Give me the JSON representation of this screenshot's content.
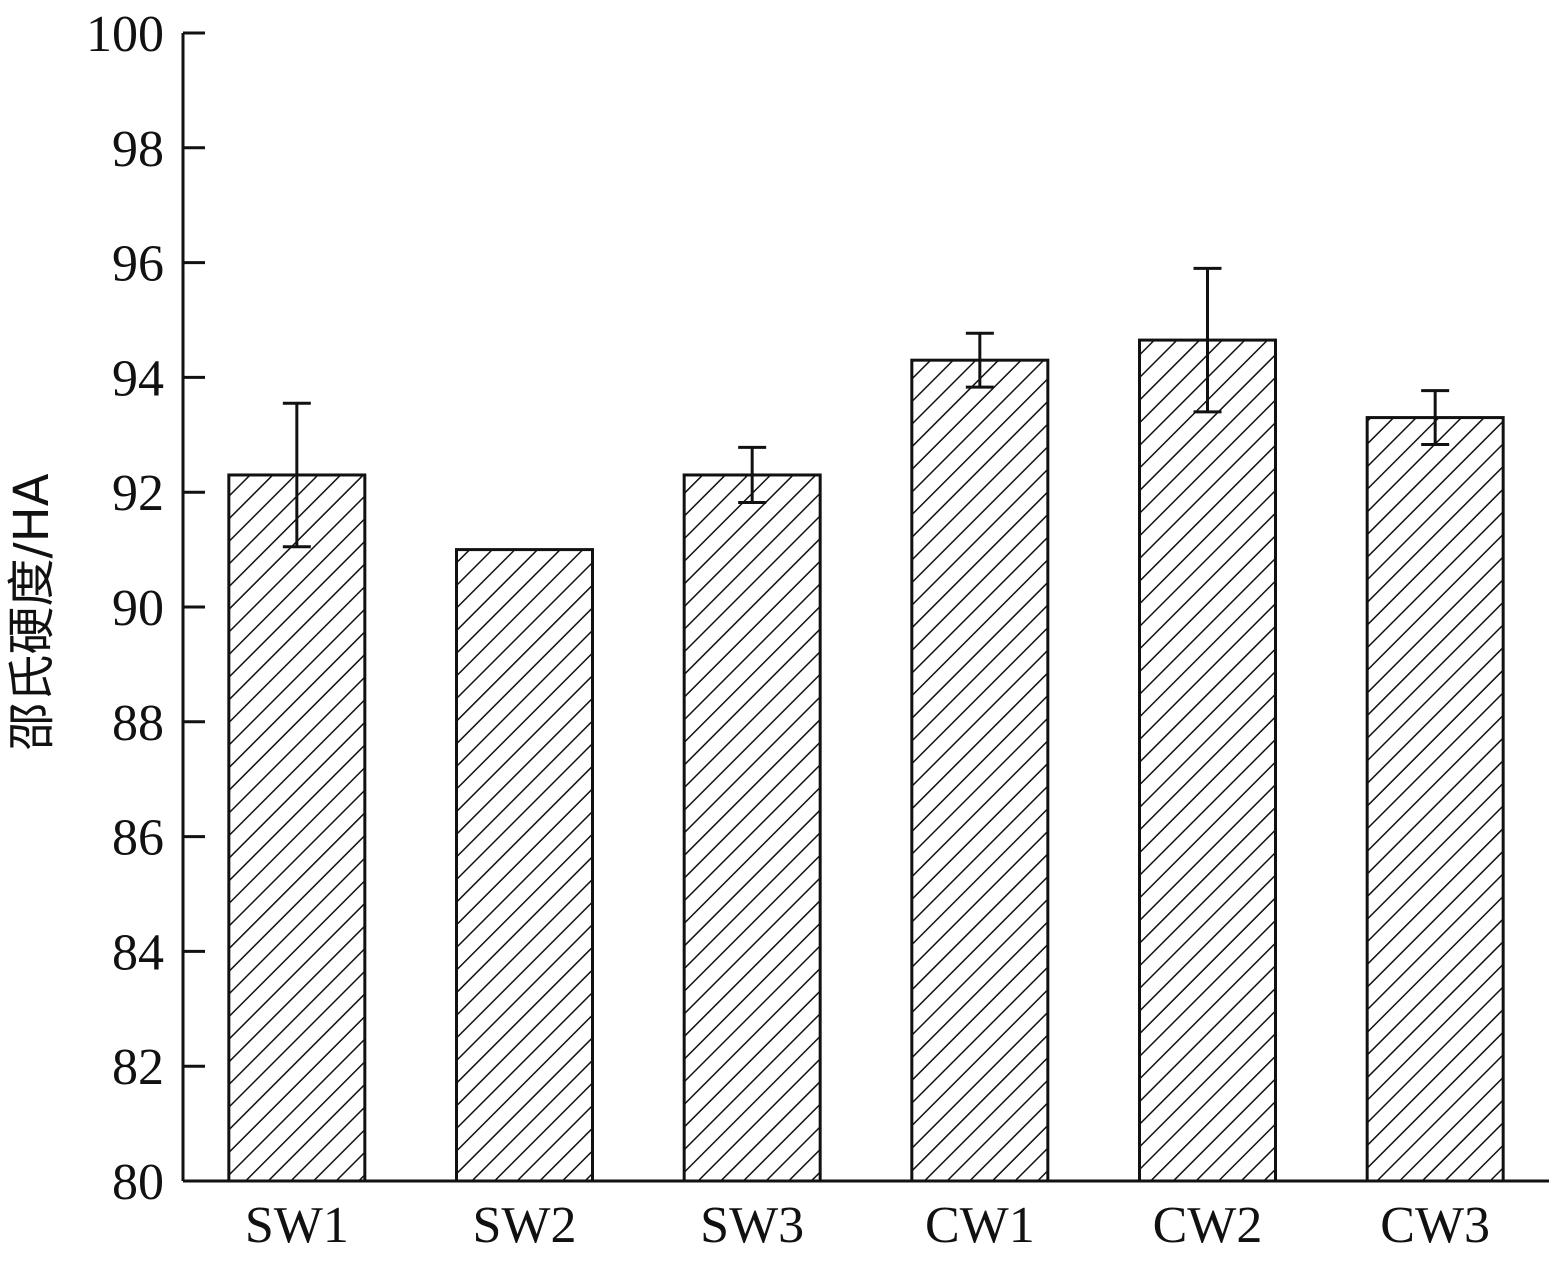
{
  "chart_data": {
    "type": "bar",
    "title": "",
    "xlabel": "",
    "ylabel": "邵氏硬度/HA",
    "ylim": [
      80,
      100
    ],
    "yticks": [
      80,
      82,
      84,
      86,
      88,
      90,
      92,
      94,
      96,
      98,
      100
    ],
    "categories": [
      "SW1",
      "SW2",
      "SW3",
      "CW1",
      "CW2",
      "CW3"
    ],
    "values": [
      92.3,
      91.0,
      92.3,
      94.3,
      94.65,
      93.3
    ],
    "errors": [
      1.25,
      0,
      0.48,
      0.47,
      1.25,
      0.47
    ],
    "bar_fill": "hatched",
    "grid": false,
    "legend": "none",
    "colors": {
      "line": "#111111",
      "background": "#ffffff"
    }
  }
}
